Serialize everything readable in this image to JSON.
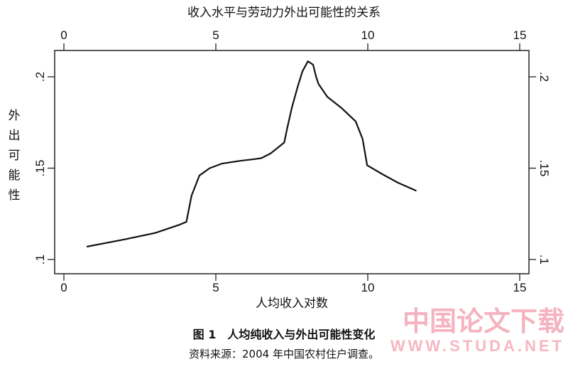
{
  "chart_data": {
    "type": "line",
    "title": "收入水平与劳动力外出可能性的关系",
    "xlabel": "人均收入对数",
    "ylabel": "外出可能性",
    "xlim": [
      0,
      15
    ],
    "ylim": [
      0.1,
      0.21
    ],
    "xticks": [
      "0",
      "5",
      "10",
      "15"
    ],
    "yticks": [
      ".1",
      ".15",
      ".2"
    ],
    "grid": false,
    "series": [
      {
        "x": [
          0.75,
          2,
          3,
          3.8,
          4.03,
          4.2,
          4.46,
          4.8,
          5.2,
          5.8,
          6.3,
          6.5,
          6.8,
          7.25,
          7.35,
          7.5,
          7.7,
          7.85,
          8.03,
          8.2,
          8.3,
          8.38,
          8.67,
          9.13,
          9.6,
          9.83,
          9.98,
          10.5,
          11,
          11.6
        ],
        "y": [
          0.107,
          0.111,
          0.1145,
          0.119,
          0.1206,
          0.135,
          0.146,
          0.15,
          0.1525,
          0.154,
          0.155,
          0.1555,
          0.158,
          0.164,
          0.172,
          0.183,
          0.195,
          0.203,
          0.2085,
          0.2066,
          0.2,
          0.196,
          0.189,
          0.183,
          0.1756,
          0.166,
          0.1516,
          0.1465,
          0.142,
          0.1376
        ]
      }
    ]
  },
  "caption": "图 1　人均纯收入与外出可能性变化",
  "source": "资料来源：2004 年中国农村住户调查。",
  "watermark": {
    "cn": "中国论文下载",
    "url": "WWW.STUDA.NET",
    "color": "#f4a6b4"
  }
}
